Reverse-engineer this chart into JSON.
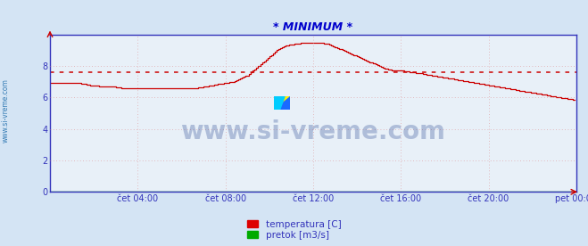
{
  "title": "* MINIMUM *",
  "title_color": "#0000cc",
  "bg_color": "#d4e4f4",
  "plot_bg_color": "#e8f0f8",
  "grid_color": "#dd8888",
  "ylabel_left": "",
  "xlabel": "",
  "xlim": [
    0,
    288
  ],
  "ylim": [
    0,
    10
  ],
  "yticks": [
    0,
    2,
    4,
    6,
    8
  ],
  "xtick_labels": [
    "čet 04:00",
    "čet 08:00",
    "čet 12:00",
    "čet 16:00",
    "čet 20:00",
    "pet 00:00"
  ],
  "xtick_positions": [
    48,
    96,
    144,
    192,
    240,
    288
  ],
  "avg_line_y": 7.6,
  "avg_line_color": "#cc0000",
  "temp_line_color": "#cc0000",
  "pretok_line_color": "#00aa00",
  "watermark": "www.si-vreme.com",
  "watermark_color": "#1a3a8a",
  "legend_labels": [
    "temperatura [C]",
    "pretok [m3/s]"
  ],
  "legend_colors": [
    "#dd0000",
    "#00aa00"
  ],
  "side_label": "www.si-vreme.com",
  "side_label_color": "#1a6aaa",
  "arrow_color": "#cc0000",
  "spine_color": "#3333bb",
  "tick_color": "#3333bb",
  "temp_data": [
    6.9,
    6.9,
    6.9,
    6.9,
    6.9,
    6.9,
    6.9,
    6.9,
    6.9,
    6.9,
    6.9,
    6.9,
    6.9,
    6.9,
    6.9,
    6.9,
    6.9,
    6.88,
    6.86,
    6.84,
    6.82,
    6.8,
    6.78,
    6.76,
    6.75,
    6.74,
    6.73,
    6.72,
    6.71,
    6.7,
    6.7,
    6.7,
    6.7,
    6.7,
    6.7,
    6.68,
    6.66,
    6.64,
    6.62,
    6.6,
    6.6,
    6.6,
    6.6,
    6.6,
    6.6,
    6.6,
    6.6,
    6.6,
    6.6,
    6.6,
    6.6,
    6.6,
    6.6,
    6.6,
    6.6,
    6.6,
    6.6,
    6.6,
    6.6,
    6.6,
    6.6,
    6.6,
    6.6,
    6.6,
    6.6,
    6.6,
    6.6,
    6.6,
    6.6,
    6.6,
    6.6,
    6.6,
    6.6,
    6.6,
    6.6,
    6.6,
    6.6,
    6.6,
    6.6,
    6.6,
    6.6,
    6.62,
    6.64,
    6.66,
    6.68,
    6.7,
    6.72,
    6.74,
    6.76,
    6.78,
    6.8,
    6.82,
    6.84,
    6.86,
    6.88,
    6.9,
    6.92,
    6.94,
    6.96,
    6.98,
    7.0,
    7.05,
    7.1,
    7.15,
    7.2,
    7.25,
    7.3,
    7.35,
    7.4,
    7.5,
    7.6,
    7.7,
    7.8,
    7.9,
    8.0,
    8.1,
    8.2,
    8.3,
    8.4,
    8.5,
    8.6,
    8.7,
    8.8,
    8.9,
    9.0,
    9.1,
    9.15,
    9.2,
    9.25,
    9.3,
    9.32,
    9.34,
    9.36,
    9.38,
    9.4,
    9.42,
    9.44,
    9.45,
    9.46,
    9.47,
    9.48,
    9.48,
    9.48,
    9.48,
    9.48,
    9.48,
    9.48,
    9.48,
    9.47,
    9.46,
    9.44,
    9.42,
    9.4,
    9.35,
    9.3,
    9.25,
    9.2,
    9.15,
    9.1,
    9.05,
    9.0,
    8.95,
    8.9,
    8.85,
    8.8,
    8.75,
    8.7,
    8.65,
    8.6,
    8.55,
    8.5,
    8.45,
    8.4,
    8.35,
    8.3,
    8.25,
    8.2,
    8.15,
    8.1,
    8.05,
    8.0,
    7.95,
    7.9,
    7.85,
    7.82,
    7.79,
    7.76,
    7.74,
    7.72,
    7.7,
    7.7,
    7.7,
    7.7,
    7.7,
    7.68,
    7.66,
    7.64,
    7.62,
    7.6,
    7.58,
    7.56,
    7.55,
    7.54,
    7.52,
    7.5,
    7.48,
    7.46,
    7.44,
    7.42,
    7.4,
    7.38,
    7.36,
    7.34,
    7.32,
    7.3,
    7.28,
    7.26,
    7.24,
    7.22,
    7.2,
    7.18,
    7.16,
    7.14,
    7.12,
    7.1,
    7.08,
    7.06,
    7.04,
    7.02,
    7.0,
    6.98,
    6.96,
    6.94,
    6.92,
    6.9,
    6.88,
    6.86,
    6.84,
    6.82,
    6.8,
    6.78,
    6.76,
    6.74,
    6.72,
    6.7,
    6.68,
    6.66,
    6.64,
    6.62,
    6.6,
    6.58,
    6.56,
    6.54,
    6.52,
    6.5,
    6.48,
    6.46,
    6.44,
    6.42,
    6.4,
    6.38,
    6.36,
    6.34,
    6.32,
    6.3,
    6.28,
    6.26,
    6.24,
    6.22,
    6.2,
    6.18,
    6.16,
    6.14,
    6.12,
    6.1,
    6.08,
    6.06,
    6.04,
    6.02,
    6.0,
    5.98,
    5.96,
    5.94,
    5.92,
    5.9,
    5.88,
    5.86,
    5.84
  ]
}
